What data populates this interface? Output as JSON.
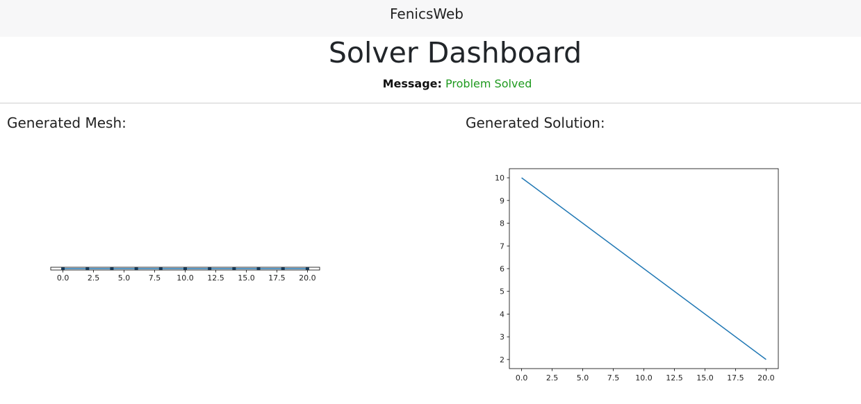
{
  "navbar": {
    "brand": "FenicsWeb"
  },
  "page": {
    "title": "Solver Dashboard",
    "message_label": "Message:",
    "message_value": "Problem Solved"
  },
  "sections": {
    "mesh_heading": "Generated Mesh:",
    "solution_heading": "Generated Solution:"
  },
  "colors": {
    "line": "#1f77b4",
    "success": "#1f9a1f"
  },
  "chart_data": [
    {
      "type": "line",
      "x": [
        0.0,
        2.0,
        4.0,
        6.0,
        8.0,
        10.0,
        12.0,
        14.0,
        16.0,
        18.0,
        20.0
      ],
      "xlim": [
        -1.0,
        21.0
      ],
      "xticks": [
        0.0,
        2.5,
        5.0,
        7.5,
        10.0,
        12.5,
        15.0,
        17.5,
        20.0
      ],
      "xtick_labels": [
        "0.0",
        "2.5",
        "5.0",
        "7.5",
        "10.0",
        "12.5",
        "15.0",
        "17.5",
        "20.0"
      ]
    },
    {
      "type": "line",
      "x": [
        0.0,
        20.0
      ],
      "y": [
        10.0,
        2.0
      ],
      "xlim": [
        -1.0,
        21.0
      ],
      "ylim": [
        1.6,
        10.4
      ],
      "xticks": [
        0.0,
        2.5,
        5.0,
        7.5,
        10.0,
        12.5,
        15.0,
        17.5,
        20.0
      ],
      "xtick_labels": [
        "0.0",
        "2.5",
        "5.0",
        "7.5",
        "10.0",
        "12.5",
        "15.0",
        "17.5",
        "20.0"
      ],
      "yticks": [
        2,
        3,
        4,
        5,
        6,
        7,
        8,
        9,
        10
      ],
      "ytick_labels": [
        "2",
        "3",
        "4",
        "5",
        "6",
        "7",
        "8",
        "9",
        "10"
      ]
    }
  ]
}
